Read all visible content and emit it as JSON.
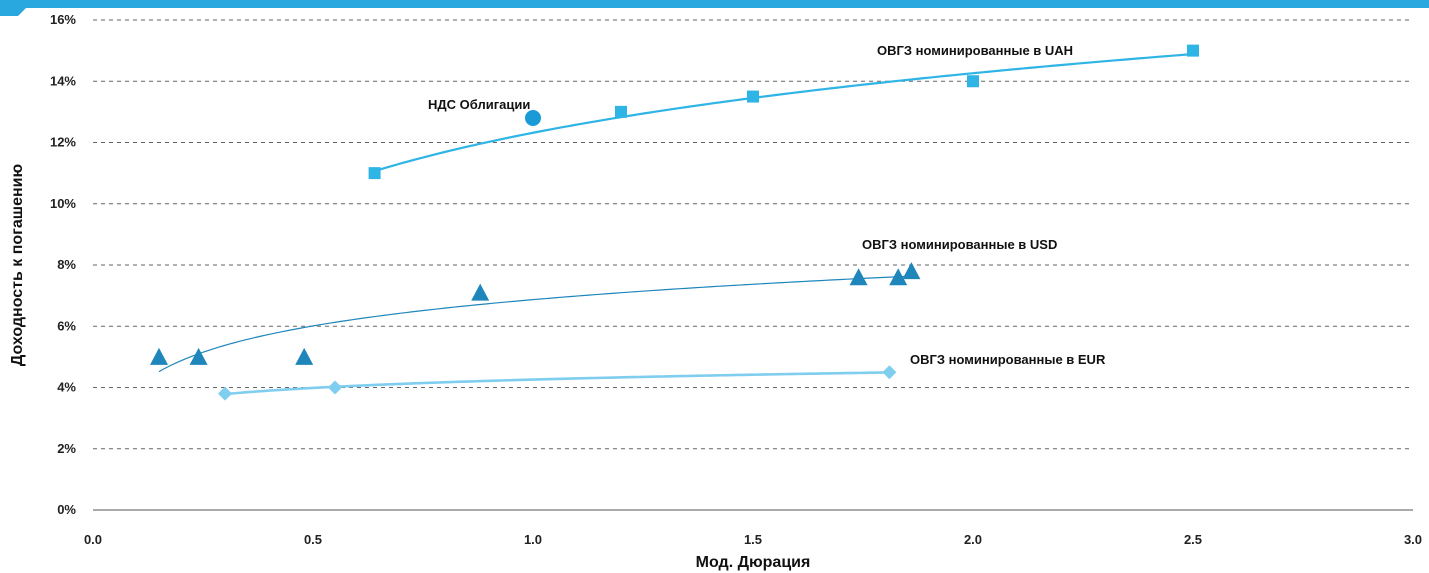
{
  "chart_data": {
    "type": "scatter",
    "xlabel": "Мод. Дюрация",
    "ylabel": "Доходность к погашению",
    "xlim": [
      0,
      3
    ],
    "ylim": [
      0,
      16
    ],
    "x_ticks": [
      "0.0",
      "0.5",
      "1.0",
      "1.5",
      "2.0",
      "2.5",
      "3.0"
    ],
    "y_ticks": [
      "0%",
      "2%",
      "4%",
      "6%",
      "8%",
      "10%",
      "12%",
      "14%",
      "16%"
    ],
    "grid": "horizontal dashed",
    "accent_color": "#29a8e0",
    "series": [
      {
        "name": "ОВГЗ номинированные в UAH",
        "marker": "square",
        "color": "#2fb4e6",
        "points": [
          [
            0.64,
            11.0
          ],
          [
            1.2,
            13.0
          ],
          [
            1.5,
            13.5
          ],
          [
            2.0,
            14.0
          ],
          [
            2.5,
            15.0
          ]
        ],
        "trend": {
          "type": "log",
          "x_range": [
            0.64,
            2.5
          ]
        }
      },
      {
        "name": "НДС  Облигации",
        "marker": "circle",
        "color": "#1a9ad6",
        "points": [
          [
            1.0,
            12.8
          ]
        ]
      },
      {
        "name": "ОВГЗ номинированные в USD",
        "marker": "triangle",
        "color": "#1f86bb",
        "points": [
          [
            0.15,
            5.0
          ],
          [
            0.24,
            5.0
          ],
          [
            0.48,
            5.0
          ],
          [
            0.88,
            7.1
          ],
          [
            1.74,
            7.6
          ],
          [
            1.83,
            7.6
          ],
          [
            1.86,
            7.8
          ]
        ],
        "trend": {
          "type": "log",
          "x_range": [
            0.15,
            1.86
          ]
        }
      },
      {
        "name": "ОВГЗ номинированные в EUR",
        "marker": "diamond",
        "color": "#7fcdef",
        "points": [
          [
            0.3,
            3.8
          ],
          [
            0.55,
            4.0
          ],
          [
            1.81,
            4.5
          ]
        ],
        "trend": {
          "type": "log",
          "x_range": [
            0.3,
            1.81
          ]
        }
      }
    ]
  }
}
